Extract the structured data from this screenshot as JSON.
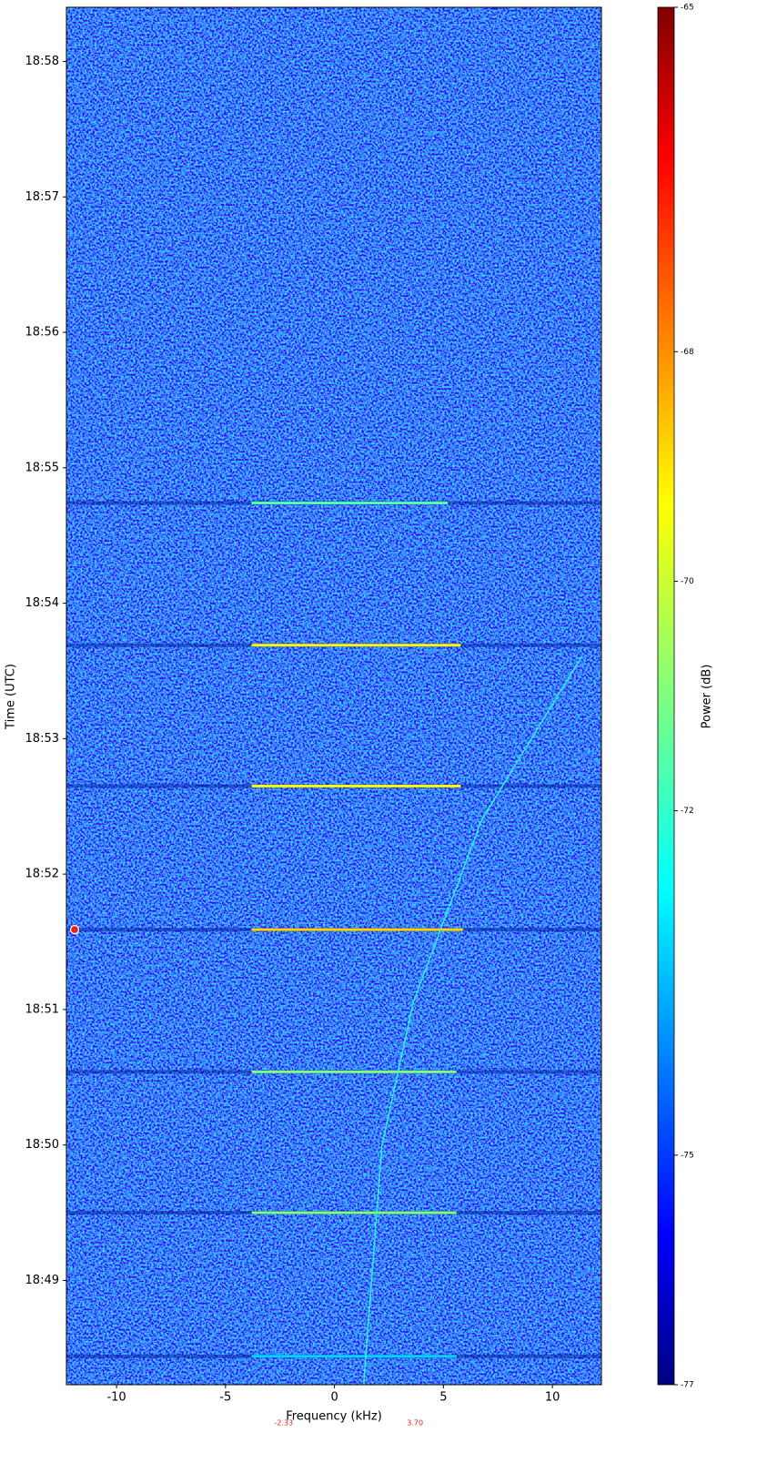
{
  "chart_data": {
    "type": "spectrogram",
    "x_label": "Frequency (kHz)",
    "y_label": "Time (UTC)",
    "colorbar_label": "Power (dB)",
    "xlim": [
      -12.3,
      12.25
    ],
    "xticks": [
      -10,
      -5,
      0,
      5,
      10
    ],
    "ylim": [
      1128.23,
      1138.4
    ],
    "yticks": [
      {
        "value": 1129,
        "label": "18:49"
      },
      {
        "value": 1130,
        "label": "18:50"
      },
      {
        "value": 1131,
        "label": "18:51"
      },
      {
        "value": 1132,
        "label": "18:52"
      },
      {
        "value": 1133,
        "label": "18:53"
      },
      {
        "value": 1134,
        "label": "18:54"
      },
      {
        "value": 1135,
        "label": "18:55"
      },
      {
        "value": 1136,
        "label": "18:56"
      },
      {
        "value": 1137,
        "label": "18:57"
      },
      {
        "value": 1138,
        "label": "18:58"
      }
    ],
    "clim": [
      -77,
      -65
    ],
    "cticks": [
      -77,
      -75,
      -72,
      -70,
      -68,
      -65
    ],
    "colormap": "jet",
    "bursts": [
      {
        "time": 1134.74,
        "f_start": -3.8,
        "f_end": 5.2,
        "power": -71.5
      },
      {
        "time": 1133.69,
        "f_start": -3.8,
        "f_end": 5.8,
        "power": -69.5
      },
      {
        "time": 1132.65,
        "f_start": -3.8,
        "f_end": 5.8,
        "power": -69.5
      },
      {
        "time": 1131.59,
        "f_start": -3.8,
        "f_end": 5.9,
        "power": -69
      },
      {
        "time": 1130.54,
        "f_start": -3.8,
        "f_end": 5.6,
        "power": -71
      },
      {
        "time": 1129.5,
        "f_start": -3.8,
        "f_end": 5.6,
        "power": -71
      },
      {
        "time": 1128.44,
        "f_start": -3.8,
        "f_end": 5.6,
        "power": -73
      }
    ],
    "doppler": {
      "freq": [
        1.34,
        2.17,
        3.63,
        6.76,
        11.36
      ],
      "time": [
        1128.23,
        1129.99,
        1131.06,
        1132.4,
        1133.61
      ],
      "power": -72
    },
    "freq_markers": [
      {
        "value": -2.33,
        "label": "-2.33"
      },
      {
        "value": 3.7,
        "label": "3.70"
      }
    ],
    "marker_time": 1131.59,
    "marker_color": "#e8231e"
  }
}
